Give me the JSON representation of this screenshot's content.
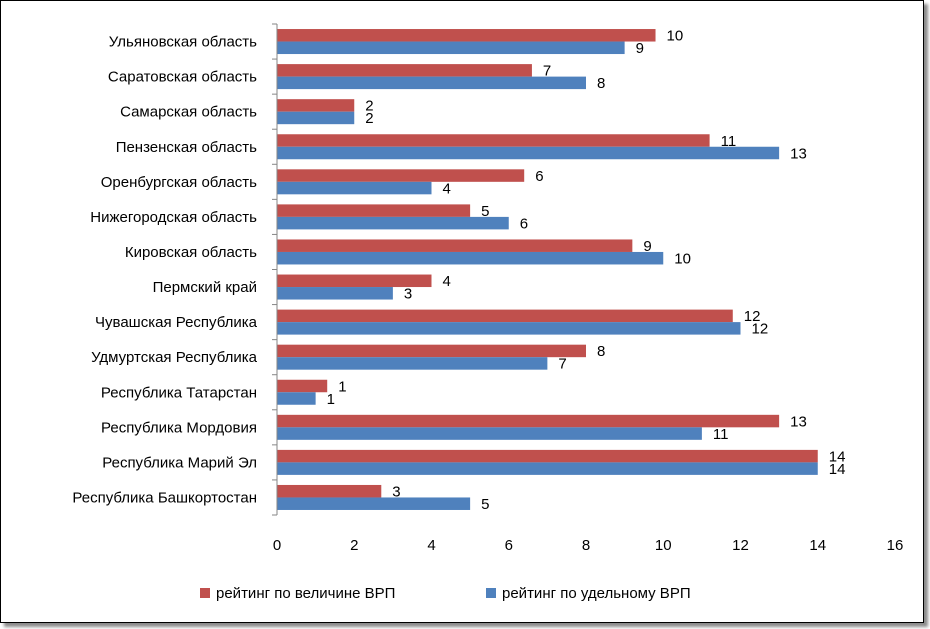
{
  "chart_data": {
    "type": "bar",
    "orientation": "horizontal",
    "categories": [
      "Ульяновская область",
      "Саратовская область",
      "Самарская область",
      "Пензенская область",
      "Оренбургская область",
      "Нижегородская область",
      "Кировская область",
      "Пермский край",
      "Чувашская Республика",
      "Удмуртская Республика",
      "Республика Татарстан",
      "Республика Мордовия",
      "Республика Марий Эл",
      "Республика Башкортостан"
    ],
    "series": [
      {
        "name": "рейтинг по величине ВРП",
        "color": "#c0504d",
        "values": [
          9.8,
          6.6,
          2,
          11.2,
          6.4,
          5,
          9.2,
          4,
          11.8,
          8,
          1.3,
          13,
          14,
          2.7
        ],
        "labels": [
          "10",
          "7",
          "2",
          "11",
          "6",
          "5",
          "9",
          "4",
          "12",
          "8",
          "1",
          "13",
          "14",
          "3"
        ]
      },
      {
        "name": "рейтинг по удельному ВРП",
        "color": "#4f81bd",
        "values": [
          9,
          8,
          2,
          13,
          4,
          6,
          10,
          3,
          12,
          7,
          1,
          11,
          14,
          5
        ],
        "labels": [
          "9",
          "8",
          "2",
          "13",
          "4",
          "6",
          "10",
          "3",
          "12",
          "7",
          "1",
          "11",
          "14",
          "5"
        ]
      }
    ],
    "xlim": [
      0,
      16
    ],
    "xticks": [
      "0",
      "2",
      "4",
      "6",
      "8",
      "10",
      "12",
      "14",
      "16"
    ],
    "title": "",
    "xlabel": "",
    "ylabel": "",
    "grid": false,
    "legend": "bottom"
  }
}
